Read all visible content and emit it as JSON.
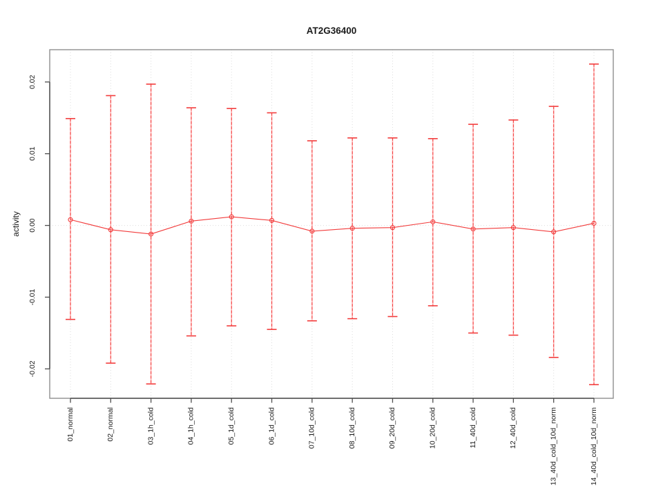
{
  "window": {
    "background": "#ffffff"
  },
  "chart_data": {
    "type": "line",
    "title": "AT2G36400",
    "xlabel": "",
    "ylabel": "activity",
    "legend": "none",
    "marker": "open-circle",
    "error_bar_style": "dashed-vertical-with-caps",
    "grid": {
      "vertical_dotted": true,
      "zero_line_dotted": true,
      "horizontal_gridlines": false
    },
    "categories": [
      "01_normal",
      "02_normal",
      "03_1h_cold",
      "04_1h_cold",
      "05_1d_cold",
      "06_1d_cold",
      "07_10d_cold",
      "08_10d_cold",
      "09_20d_cold",
      "10_20d_cold",
      "11_40d_cold",
      "12_40d_cold",
      "13_40d_cold_10d_norm",
      "14_40d_cold_10d_norm"
    ],
    "series": [
      {
        "name": "mean",
        "values": [
          0.0008,
          -0.0006,
          -0.0012,
          0.0006,
          0.0012,
          0.0007,
          -0.0008,
          -0.0004,
          -0.0003,
          0.0005,
          -0.0005,
          -0.0003,
          -0.0009,
          0.0003
        ]
      },
      {
        "name": "upper_error",
        "values": [
          0.0149,
          0.0181,
          0.0197,
          0.0164,
          0.0163,
          0.0157,
          0.0118,
          0.0122,
          0.0122,
          0.0121,
          0.0141,
          0.0147,
          0.0166,
          0.0225
        ]
      },
      {
        "name": "lower_error",
        "values": [
          -0.0131,
          -0.0192,
          -0.0221,
          -0.0154,
          -0.014,
          -0.0145,
          -0.0133,
          -0.013,
          -0.0127,
          -0.0112,
          -0.015,
          -0.0153,
          -0.0184,
          -0.0222
        ]
      }
    ],
    "ylim": [
      -0.0241,
      0.0245
    ],
    "yticks": [
      0.02,
      0.01,
      0,
      -0.01,
      -0.02
    ],
    "ytick_labels": [
      "0.02",
      "0.01",
      "0.00",
      "-0.01",
      "-0.02"
    ],
    "colors": {
      "series": "#f23b3b",
      "series_light": "#ffb0b0",
      "grid": "#dcdcdc",
      "frame": "#8f8f8f",
      "axis": "#4d4d4d",
      "text": "#1a1a1a",
      "background": "#ffffff"
    }
  }
}
